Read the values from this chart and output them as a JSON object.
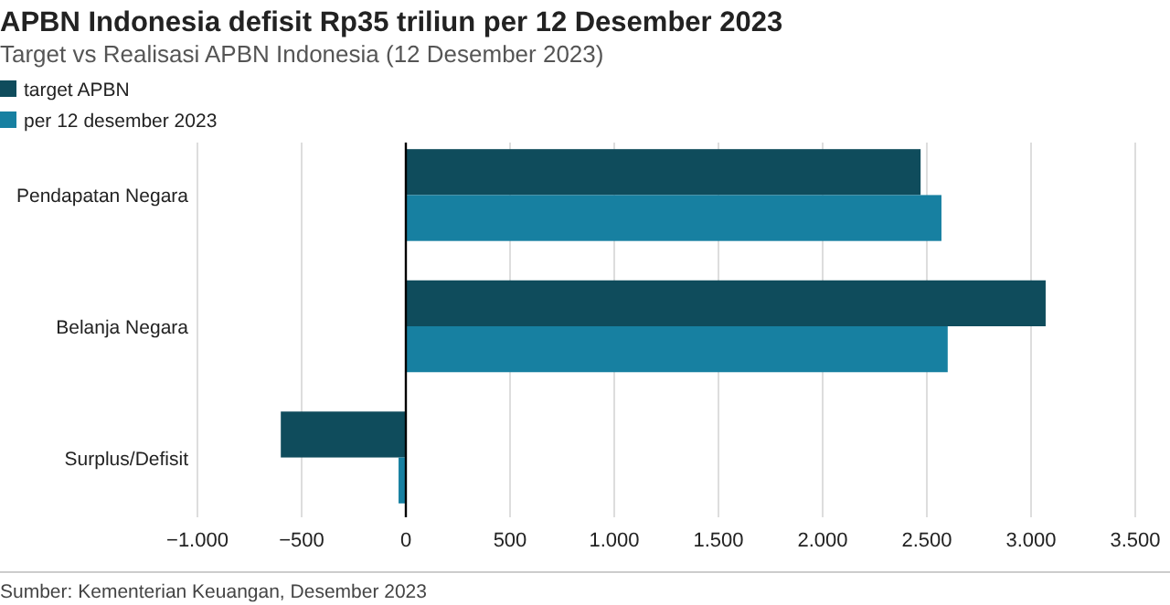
{
  "chart_data": {
    "type": "bar",
    "orientation": "horizontal",
    "title": "APBN Indonesia defisit Rp35 triliun per 12 Desember 2023",
    "subtitle": "Target vs Realisasi APBN Indonesia (12 Desember 2023)",
    "categories": [
      "Pendapatan Negara",
      "Belanja Negara",
      "Surplus/Defisit"
    ],
    "series": [
      {
        "name": "target APBN",
        "color": "#0f4c5c",
        "values": [
          2470,
          3070,
          -600
        ]
      },
      {
        "name": "per 12 desember 2023",
        "color": "#1780a1",
        "values": [
          2570,
          2600,
          -35
        ]
      }
    ],
    "xlim": [
      -1000,
      3500
    ],
    "xticks": [
      {
        "value": -1000,
        "label": "−1.000"
      },
      {
        "value": -500,
        "label": "−500"
      },
      {
        "value": 0,
        "label": "0"
      },
      {
        "value": 500,
        "label": "500"
      },
      {
        "value": 1000,
        "label": "1.000"
      },
      {
        "value": 1500,
        "label": "1.500"
      },
      {
        "value": 2000,
        "label": "2.000"
      },
      {
        "value": 2500,
        "label": "2.500"
      },
      {
        "value": 3000,
        "label": "3.000"
      },
      {
        "value": 3500,
        "label": "3.500"
      }
    ],
    "grid": "x",
    "legend": "top left",
    "annotations": [
      "Sumber: Kementerian Keuangan, Desember 2023"
    ]
  }
}
